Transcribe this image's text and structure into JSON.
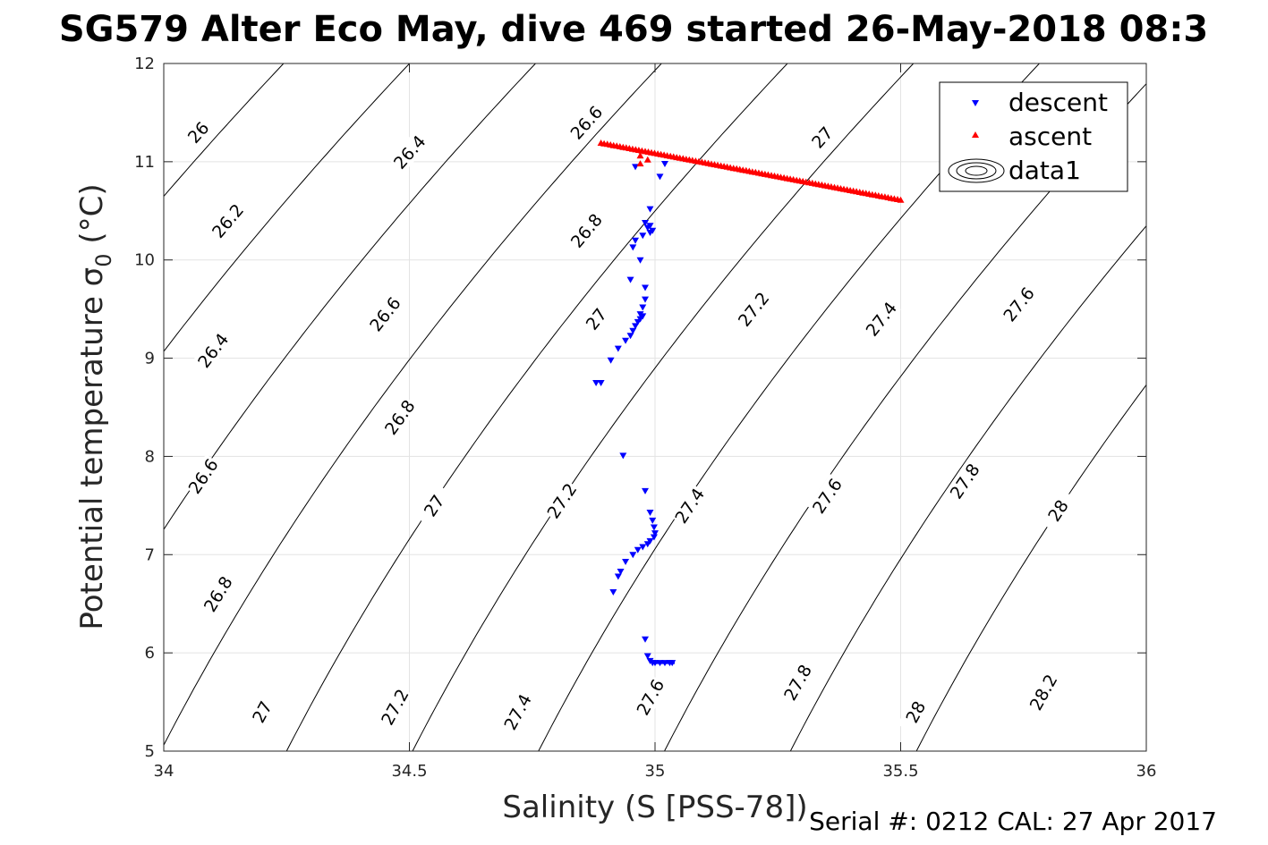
{
  "chart_data": {
    "type": "scatter",
    "title": "SG579 Alter Eco May, dive 469 started 26-May-2018 08:3",
    "xlabel": "Salinity (S [PSS-78])",
    "ylabel": "Potential temperature σ",
    "ylabel_sub": "0",
    "ylabel_unit": " (°C)",
    "xlim": [
      34,
      36
    ],
    "ylim": [
      5,
      12
    ],
    "xticks": [
      "34",
      "34.5",
      "35",
      "35.5",
      "36"
    ],
    "yticks": [
      "5",
      "6",
      "7",
      "8",
      "9",
      "10",
      "11",
      "12"
    ],
    "grid": true,
    "legend_position": "top-right",
    "legend": [
      "descent",
      "ascent",
      "data1"
    ],
    "footer": "Serial #: 0212  CAL: 27 Apr 2017",
    "contour_levels": [
      26.0,
      26.2,
      26.4,
      26.6,
      26.8,
      27.0,
      27.2,
      27.4,
      27.6,
      27.8,
      28.0,
      28.2
    ],
    "contour_labels": [
      {
        "text": "26",
        "s": 34.07,
        "t": 11.3
      },
      {
        "text": "26.2",
        "s": 34.13,
        "t": 10.4
      },
      {
        "text": "26.4",
        "s": 34.5,
        "t": 11.1
      },
      {
        "text": "26.6",
        "s": 34.86,
        "t": 11.4
      },
      {
        "text": "26.4",
        "s": 34.1,
        "t": 9.08
      },
      {
        "text": "26.6",
        "s": 34.45,
        "t": 9.45
      },
      {
        "text": "26.8",
        "s": 34.86,
        "t": 10.3
      },
      {
        "text": "27",
        "s": 35.34,
        "t": 11.25
      },
      {
        "text": "26.6",
        "s": 34.08,
        "t": 7.8
      },
      {
        "text": "26.8",
        "s": 34.48,
        "t": 8.4
      },
      {
        "text": "27",
        "s": 34.88,
        "t": 9.4
      },
      {
        "text": "27.2",
        "s": 35.2,
        "t": 9.5
      },
      {
        "text": "27.4",
        "s": 35.46,
        "t": 9.4
      },
      {
        "text": "27.6",
        "s": 35.74,
        "t": 9.55
      },
      {
        "text": "26.8",
        "s": 34.11,
        "t": 6.6
      },
      {
        "text": "27",
        "s": 34.55,
        "t": 7.5
      },
      {
        "text": "27.2",
        "s": 34.81,
        "t": 7.55
      },
      {
        "text": "27.4",
        "s": 35.07,
        "t": 7.5
      },
      {
        "text": "27.6",
        "s": 35.35,
        "t": 7.6
      },
      {
        "text": "27.8",
        "s": 35.63,
        "t": 7.75
      },
      {
        "text": "28",
        "s": 35.82,
        "t": 7.45
      },
      {
        "text": "27",
        "s": 34.2,
        "t": 5.4
      },
      {
        "text": "27.2",
        "s": 34.47,
        "t": 5.45
      },
      {
        "text": "27.4",
        "s": 34.72,
        "t": 5.4
      },
      {
        "text": "27.6",
        "s": 34.99,
        "t": 5.55
      },
      {
        "text": "27.8",
        "s": 35.29,
        "t": 5.7
      },
      {
        "text": "28",
        "s": 35.53,
        "t": 5.4
      },
      {
        "text": "28.2",
        "s": 35.79,
        "t": 5.6
      }
    ],
    "series": [
      {
        "name": "descent",
        "color": "#0000ff",
        "marker": "triangle-down",
        "x": [
          35.02,
          34.96,
          35.01,
          34.99,
          34.98,
          34.99,
          34.985,
          34.995,
          34.99,
          34.975,
          34.96,
          34.955,
          34.97,
          34.95,
          34.98,
          34.98,
          34.975,
          34.97,
          34.975,
          34.97,
          34.965,
          34.96,
          34.955,
          34.95,
          34.94,
          34.925,
          34.91,
          34.89,
          34.88,
          34.935,
          34.98,
          34.99,
          34.995,
          34.998,
          35.0,
          34.998,
          34.99,
          34.985,
          34.975,
          34.965,
          34.955,
          34.94,
          34.93,
          34.925,
          34.915,
          34.98,
          34.985,
          34.99,
          34.995,
          35.0,
          35.01,
          35.02,
          35.03,
          35.035
        ],
        "y": [
          10.98,
          10.95,
          10.85,
          10.52,
          10.38,
          10.35,
          10.33,
          10.3,
          10.28,
          10.25,
          10.2,
          10.13,
          10.0,
          9.8,
          9.72,
          9.6,
          9.52,
          9.45,
          9.43,
          9.4,
          9.37,
          9.33,
          9.28,
          9.23,
          9.18,
          9.1,
          8.98,
          8.75,
          8.75,
          8.01,
          7.65,
          7.43,
          7.35,
          7.28,
          7.22,
          7.18,
          7.14,
          7.11,
          7.08,
          7.05,
          7.0,
          6.93,
          6.83,
          6.78,
          6.62,
          6.14,
          5.97,
          5.92,
          5.9,
          5.9,
          5.9,
          5.9,
          5.9,
          5.9
        ]
      },
      {
        "name": "ascent",
        "color": "#ff0000",
        "marker": "triangle-up",
        "x": [
          34.89,
          35.5,
          34.97,
          34.985,
          34.97
        ],
        "y": [
          11.19,
          10.61,
          11.06,
          11.02,
          10.98
        ]
      }
    ]
  }
}
